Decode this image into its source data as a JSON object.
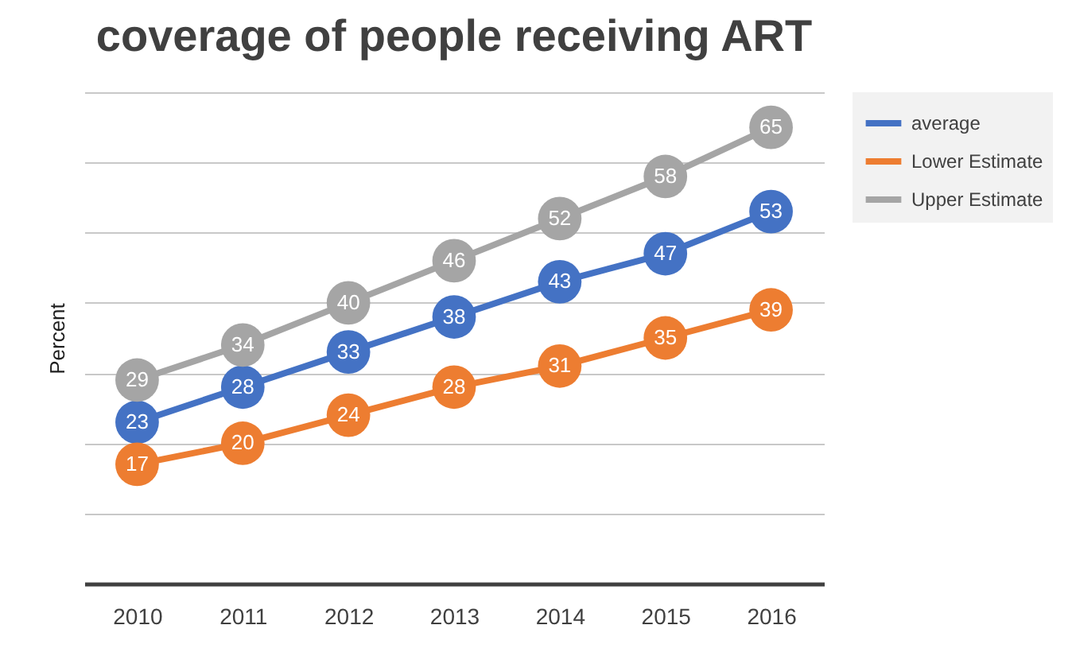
{
  "chart_data": {
    "type": "line",
    "title": "coverage of people receiving ART",
    "ylabel": "Percent",
    "categories": [
      "2010",
      "2011",
      "2012",
      "2013",
      "2014",
      "2015",
      "2016"
    ],
    "series": [
      {
        "name": "average",
        "color": "#4472c4",
        "values": [
          23,
          28,
          33,
          38,
          43,
          47,
          53
        ]
      },
      {
        "name": "Lower Estimate",
        "color": "#ed7d31",
        "values": [
          17,
          20,
          24,
          28,
          31,
          35,
          39
        ]
      },
      {
        "name": "Upper Estimate",
        "color": "#a5a5a5",
        "values": [
          29,
          34,
          40,
          46,
          52,
          58,
          65
        ]
      }
    ],
    "ylim": [
      0,
      70
    ],
    "yticks": [
      {
        "value": 0,
        "label": null
      },
      {
        "value": 10,
        "label": null
      },
      {
        "value": 20,
        "label": null
      },
      {
        "value": 30,
        "label": null
      },
      {
        "value": 40,
        "label": null
      },
      {
        "value": 50,
        "label": null
      },
      {
        "value": 60,
        "label": null
      },
      {
        "value": 70,
        "label": null
      }
    ],
    "tick_labels": "x",
    "grid": "y",
    "legend": "right",
    "marker": "circle",
    "line_style": "solid",
    "data_labels": true
  }
}
